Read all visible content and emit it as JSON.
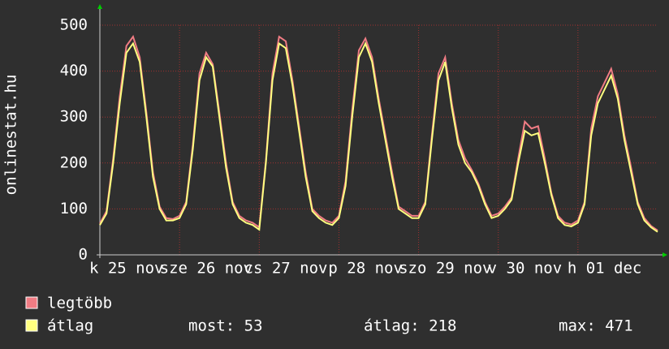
{
  "chart_data": {
    "type": "line",
    "ylabel": "onlinestat.hu",
    "categories": [
      null,
      null,
      null,
      null,
      "k 25 nov",
      null,
      null,
      null,
      null,
      null,
      null,
      null,
      null,
      null,
      null,
      null,
      "sze 26 nov",
      null,
      null,
      null,
      null,
      null,
      null,
      null,
      null,
      null,
      null,
      null,
      "cs 27 nov",
      null,
      null,
      null,
      null,
      null,
      null,
      null,
      null,
      null,
      null,
      null,
      "p 28 nov",
      null,
      null,
      null,
      null,
      null,
      null,
      null,
      null,
      null,
      null,
      null,
      "szo 29 nov",
      null,
      null,
      null,
      null,
      null,
      null,
      null,
      null,
      null,
      null,
      null,
      "v 30 nov",
      null,
      null,
      null,
      null,
      null,
      null,
      null,
      null,
      null,
      null,
      null,
      "h 01 dec",
      null,
      null,
      null,
      null,
      null,
      null,
      null,
      null
    ],
    "series": [
      {
        "name": "legtöbb",
        "color": "#f07c84",
        "values": [
          68,
          95,
          210,
          345,
          455,
          475,
          430,
          310,
          180,
          105,
          80,
          78,
          85,
          115,
          240,
          395,
          440,
          415,
          310,
          200,
          115,
          85,
          75,
          70,
          60,
          205,
          395,
          475,
          465,
          380,
          280,
          180,
          100,
          85,
          75,
          70,
          85,
          160,
          315,
          445,
          471,
          430,
          340,
          260,
          180,
          105,
          95,
          85,
          85,
          115,
          260,
          395,
          430,
          330,
          250,
          210,
          185,
          155,
          115,
          85,
          90,
          105,
          125,
          210,
          290,
          275,
          280,
          210,
          135,
          85,
          70,
          66,
          75,
          115,
          275,
          345,
          375,
          405,
          350,
          260,
          190,
          115,
          80,
          63,
          53
        ]
      },
      {
        "name": "átlag",
        "color": "#ffff80",
        "values": [
          65,
          90,
          200,
          330,
          440,
          460,
          420,
          300,
          170,
          100,
          75,
          75,
          80,
          110,
          230,
          380,
          430,
          410,
          300,
          190,
          110,
          80,
          70,
          65,
          55,
          200,
          380,
          460,
          450,
          370,
          270,
          170,
          95,
          80,
          70,
          65,
          80,
          150,
          300,
          430,
          460,
          420,
          330,
          250,
          170,
          100,
          90,
          80,
          80,
          110,
          250,
          380,
          420,
          320,
          240,
          200,
          180,
          150,
          110,
          80,
          85,
          100,
          120,
          200,
          270,
          260,
          265,
          200,
          130,
          80,
          65,
          62,
          70,
          110,
          260,
          330,
          360,
          390,
          340,
          250,
          180,
          110,
          75,
          60,
          50
        ]
      }
    ],
    "ylim": [
      0,
      500
    ],
    "yticks": [
      0,
      100,
      200,
      300,
      400,
      500
    ],
    "grid": true,
    "stats": [
      "most: 53",
      "átlag: 218",
      "max: 471"
    ]
  }
}
